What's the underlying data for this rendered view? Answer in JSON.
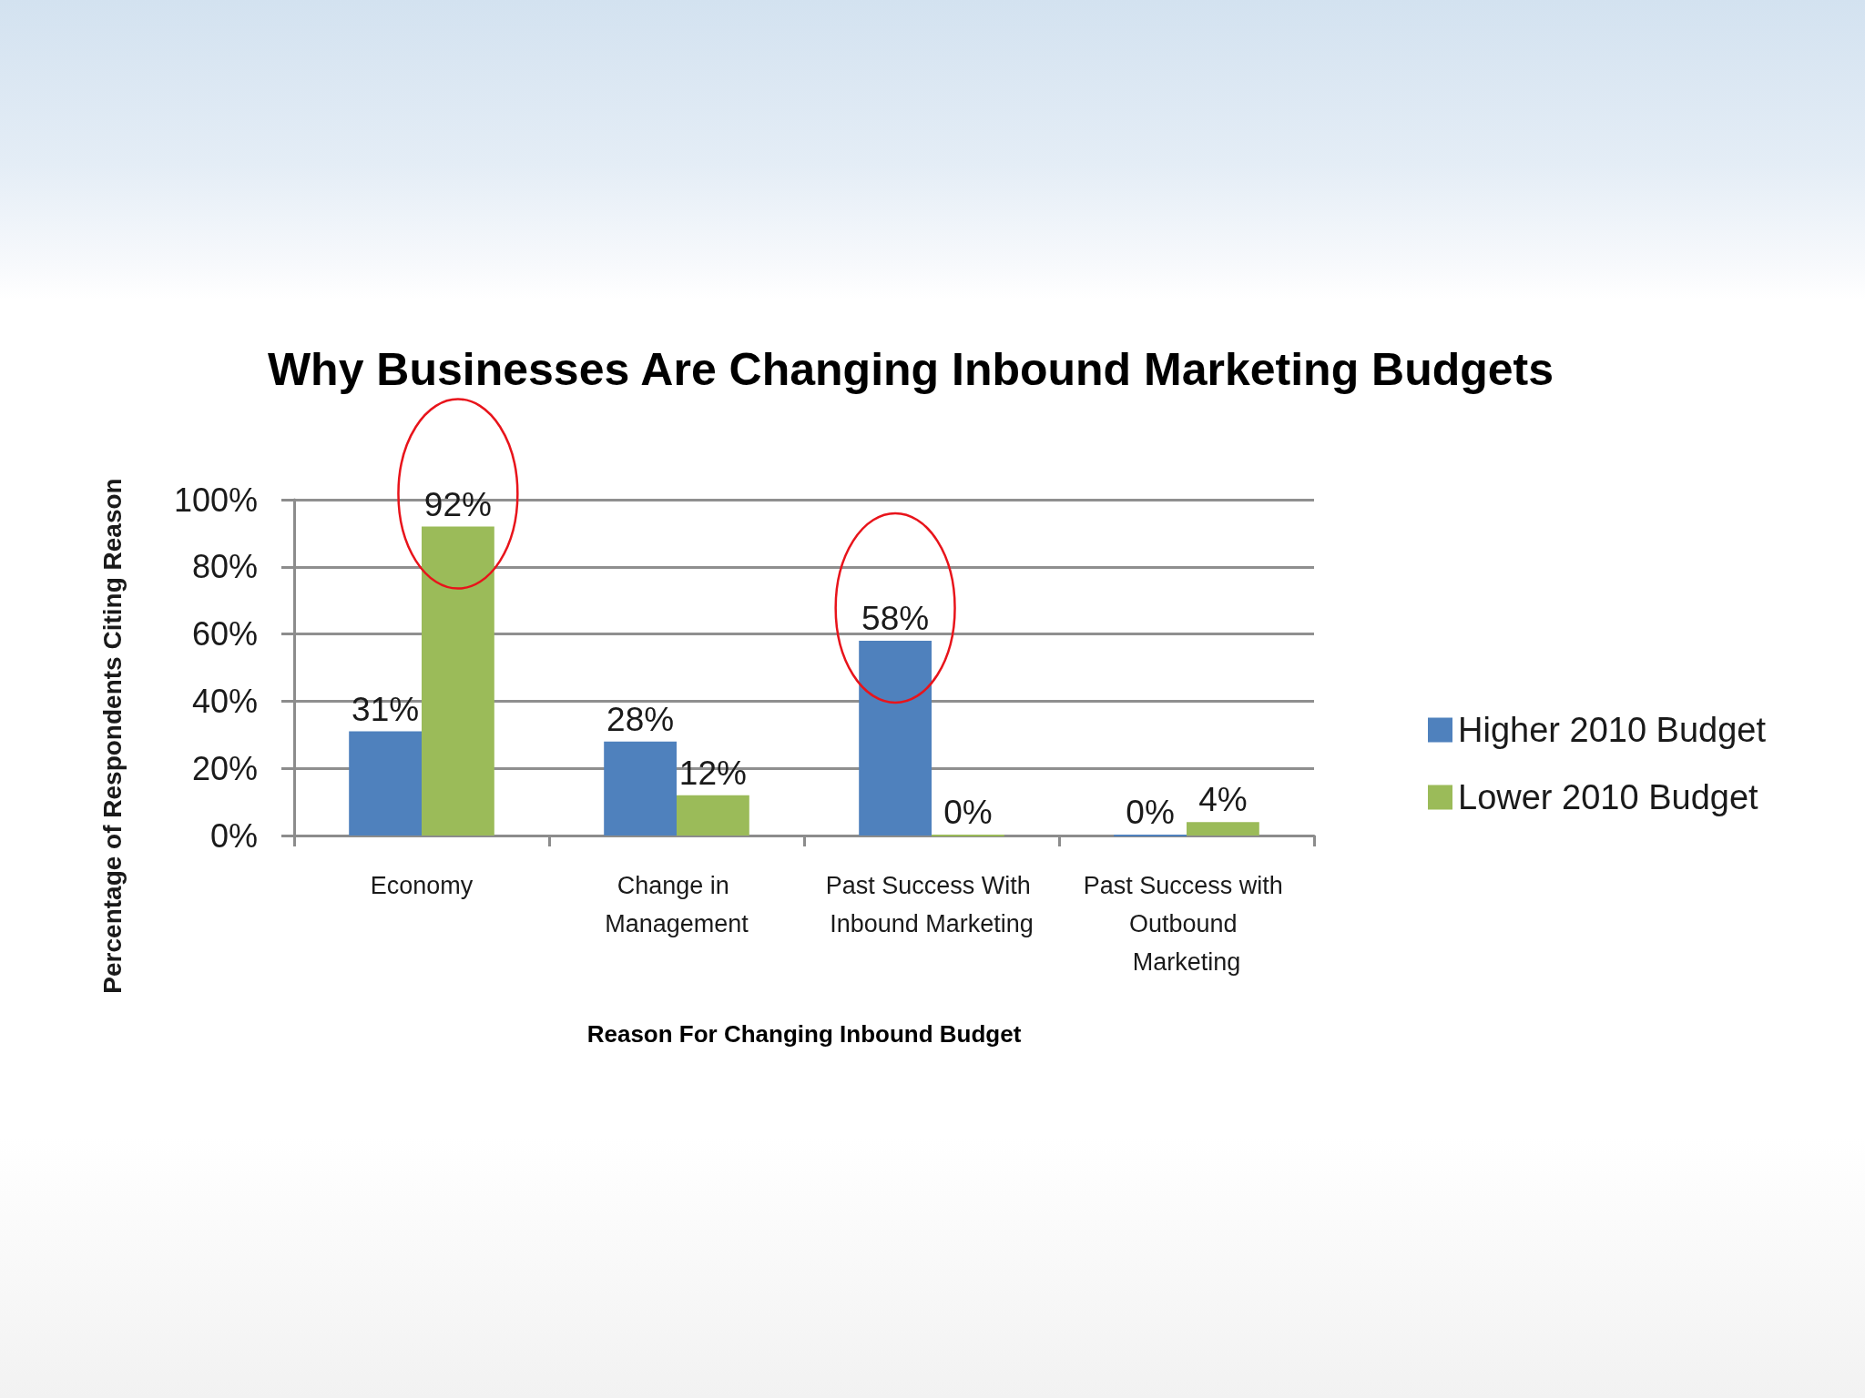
{
  "chart_data": {
    "type": "bar",
    "title": "Why Businesses Are Changing Inbound Marketing Budgets",
    "xlabel": "Reason For Changing Inbound Budget",
    "ylabel": "Percentage of Respondents Citing Reason",
    "categories": [
      "Economy",
      "Change in Management",
      "Past Success With Inbound Marketing",
      "Past Success with Outbound Marketing"
    ],
    "series": [
      {
        "name": "Higher 2010 Budget",
        "color": "#4f81bd",
        "values": [
          31,
          28,
          58,
          0
        ],
        "value_labels": [
          "31%",
          "28%",
          "58%",
          "0%"
        ]
      },
      {
        "name": "Lower 2010 Budget",
        "color": "#9bbb59",
        "values": [
          92,
          12,
          0,
          4
        ],
        "value_labels": [
          "92%",
          "12%",
          "0%",
          "4%"
        ]
      }
    ],
    "ylim": [
      0,
      100
    ],
    "yticks": [
      {
        "value": 0,
        "label": "0%"
      },
      {
        "value": 20,
        "label": "20%"
      },
      {
        "value": 40,
        "label": "40%"
      },
      {
        "value": 60,
        "label": "60%"
      },
      {
        "value": 80,
        "label": "80%"
      },
      {
        "value": 100,
        "label": "100%"
      }
    ],
    "grid": "y",
    "legend": "right"
  }
}
